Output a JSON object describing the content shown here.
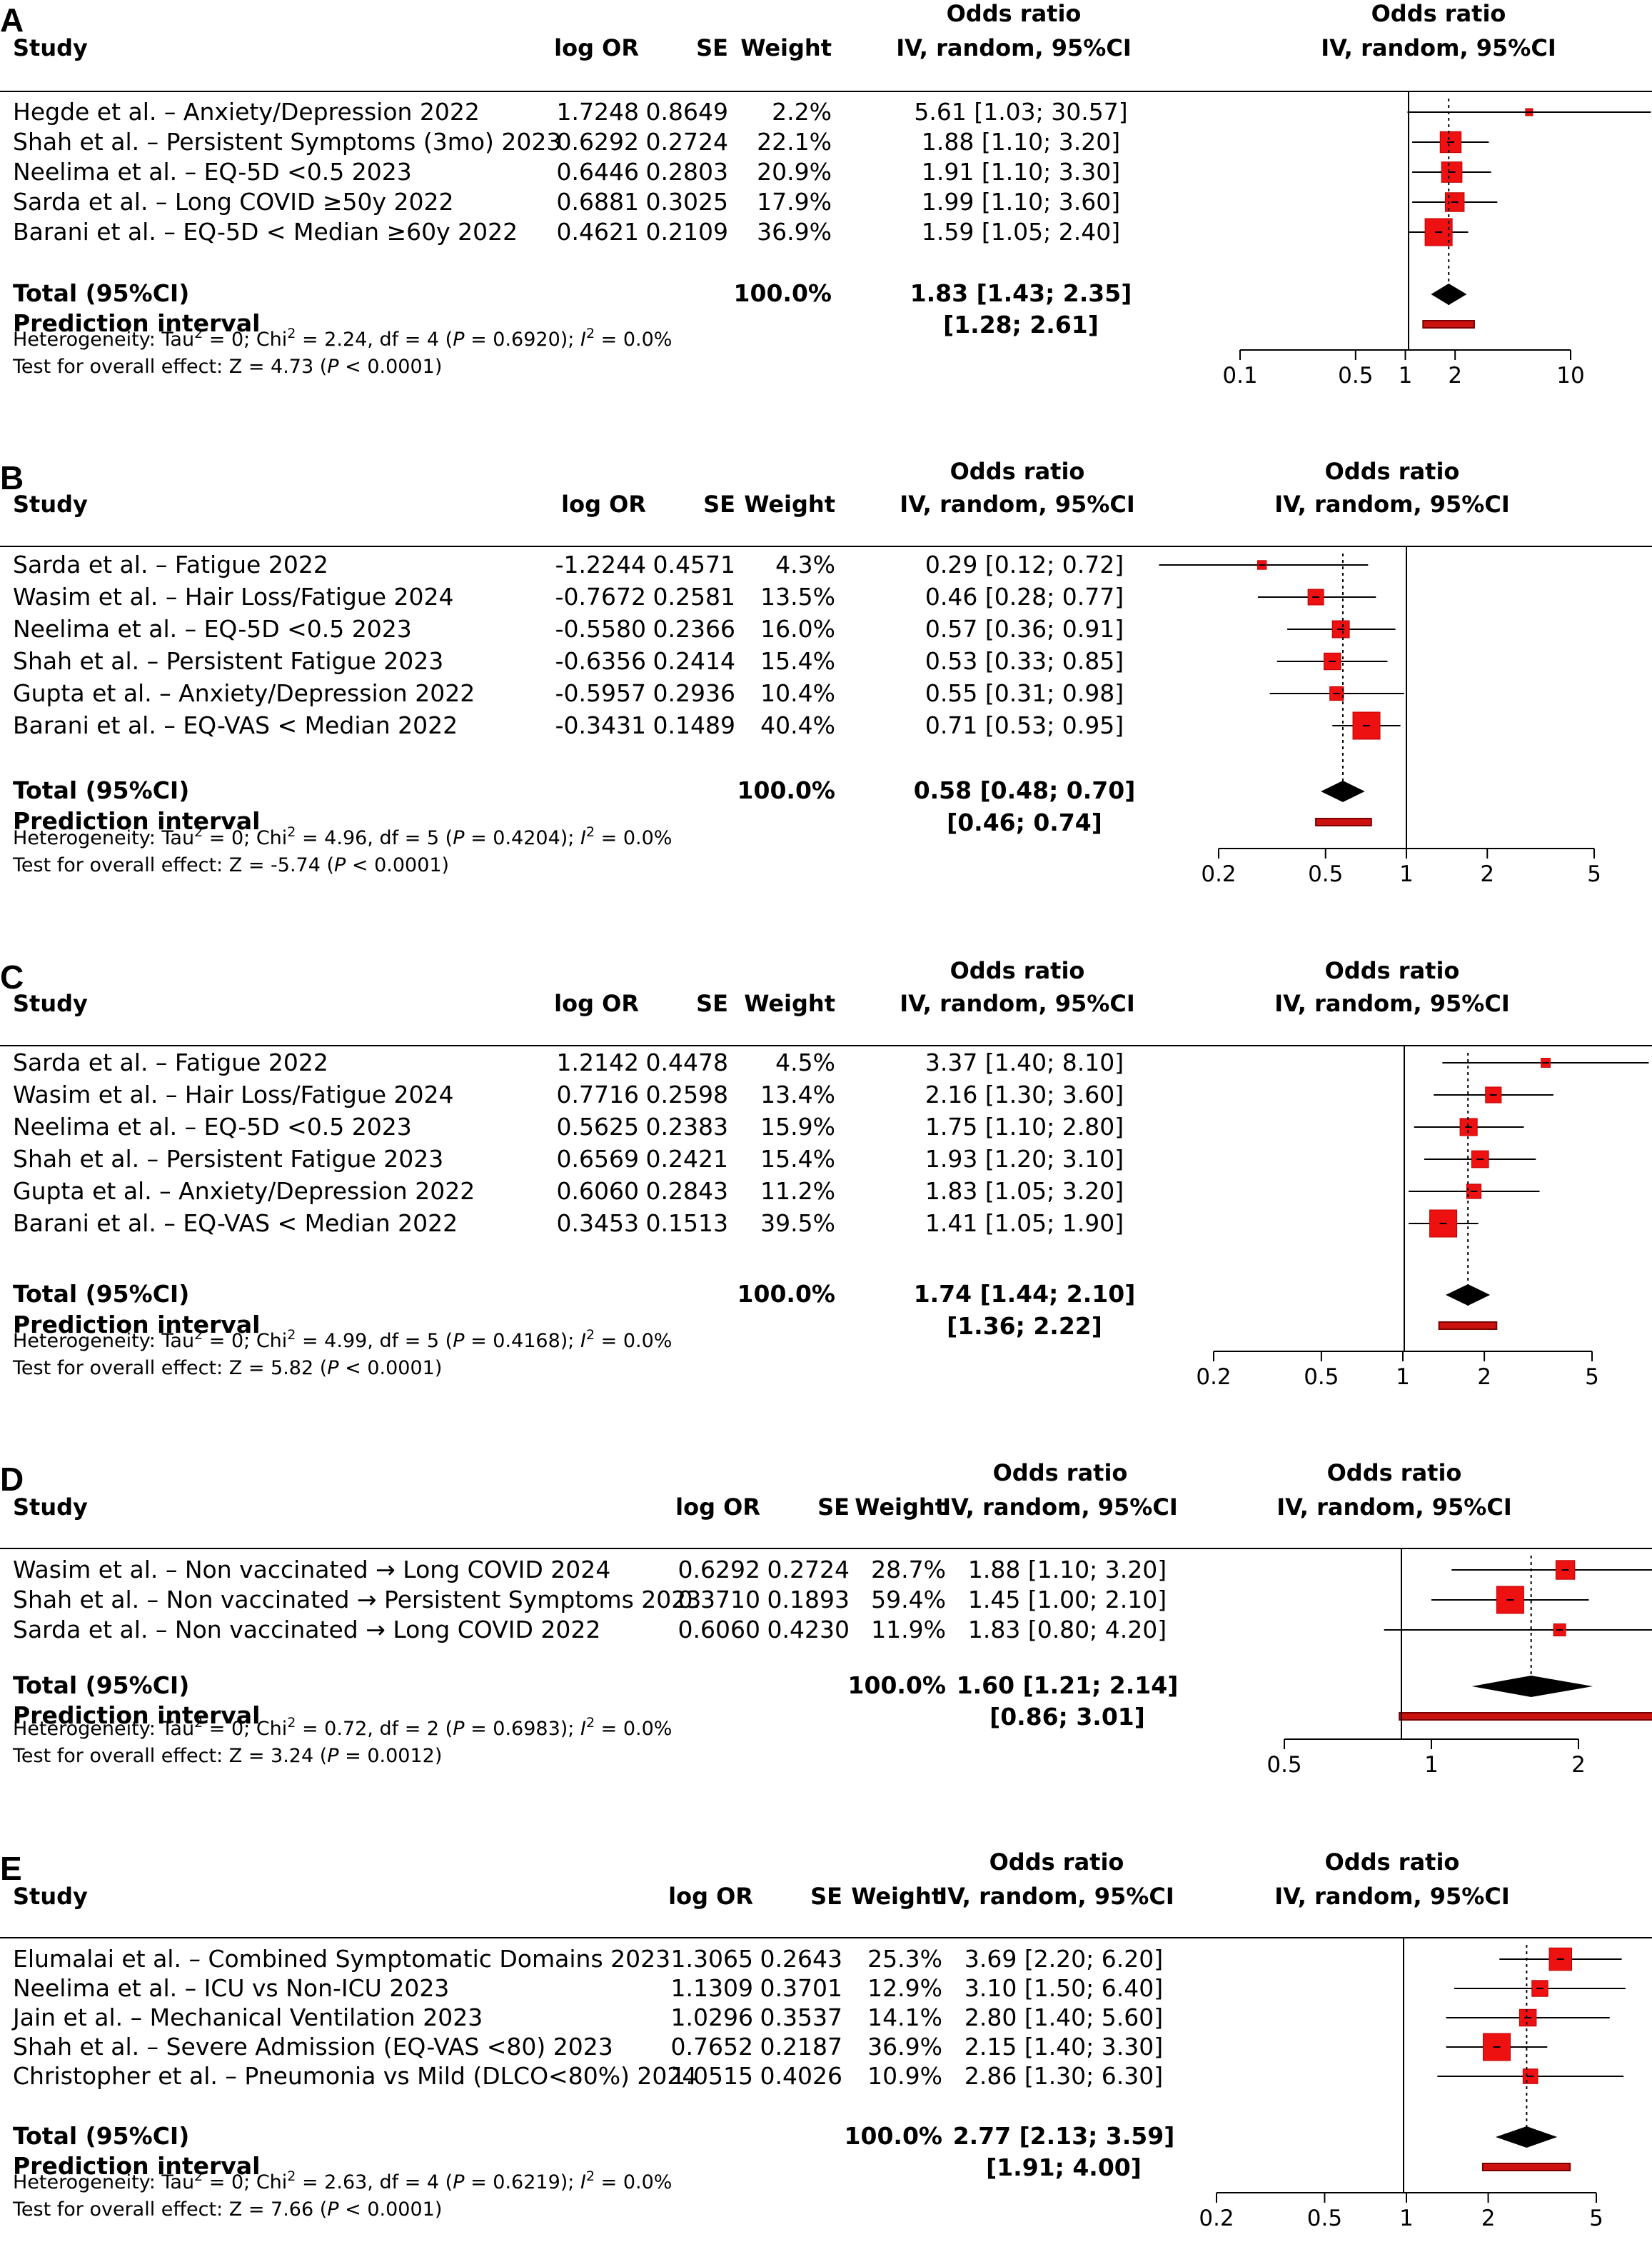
{
  "colors": {
    "box": "#ee1111",
    "box_edge": "#c00000",
    "pi_fill": "#cc1111",
    "pi_edge": "#7a0000",
    "diamond": "#000000"
  },
  "chart_data": [
    {
      "type": "forest",
      "panel": "A",
      "headers": {
        "study": "Study",
        "logor": "log OR",
        "se": "SE",
        "weight": "Weight",
        "or_top": "Odds ratio",
        "or_bottom": "IV, random, 95%CI",
        "plot_top": "Odds ratio",
        "plot_bottom": "IV, random, 95%CI"
      },
      "studies": [
        {
          "label": "Hegde et al. – Anxiety/Depression 2022",
          "logor": "1.7248",
          "se": "0.8649",
          "weight": "2.2%",
          "or_text": "5.61 [1.03; 30.57]",
          "or": 5.61,
          "lo": 1.03,
          "hi": 30.57,
          "w": 2.2
        },
        {
          "label": "Shah et al. – Persistent Symptoms (3mo) 2023",
          "logor": "0.6292",
          "se": "0.2724",
          "weight": "22.1%",
          "or_text": "1.88 [1.10; 3.20]",
          "or": 1.88,
          "lo": 1.1,
          "hi": 3.2,
          "w": 22.1
        },
        {
          "label": "Neelima et al. – EQ-5D <0.5 2023",
          "logor": "0.6446",
          "se": "0.2803",
          "weight": "20.9%",
          "or_text": "1.91 [1.10; 3.30]",
          "or": 1.91,
          "lo": 1.1,
          "hi": 3.3,
          "w": 20.9
        },
        {
          "label": "Sarda et al. – Long COVID ≥50y 2022",
          "logor": "0.6881",
          "se": "0.3025",
          "weight": "17.9%",
          "or_text": "1.99 [1.10; 3.60]",
          "or": 1.99,
          "lo": 1.1,
          "hi": 3.6,
          "w": 17.9
        },
        {
          "label": "Barani et al. – EQ-5D < Median ≥60y 2022",
          "logor": "0.4621",
          "se": "0.2109",
          "weight": "36.9%",
          "or_text": "1.59 [1.05; 2.40]",
          "or": 1.59,
          "lo": 1.05,
          "hi": 2.4,
          "w": 36.9
        }
      ],
      "total": {
        "label": "Total (95%CI)",
        "weight": "100.0%",
        "or_text": "1.83 [1.43; 2.35]",
        "or": 1.83,
        "lo": 1.43,
        "hi": 2.35
      },
      "prediction": {
        "label": "Prediction interval",
        "ci_text": "[1.28; 2.61]",
        "lo": 1.28,
        "hi": 2.61
      },
      "heterogeneity": "Heterogeneity: Tau² = 0; Chi² = 2.24, df = 4 (P = 0.6920); I² = 0.0%",
      "overall": "Test for overall effect: Z = 4.73 (P < 0.0001)",
      "axis": {
        "scale": "log",
        "min": 0.1,
        "max": 30.57,
        "ticks": [
          0.1,
          0.5,
          1,
          2,
          10
        ],
        "tick_labels": [
          "0.1",
          "0.5",
          "1",
          "2",
          "10"
        ]
      }
    },
    {
      "type": "forest",
      "panel": "B",
      "headers": {
        "study": "Study",
        "logor": "log OR",
        "se": "SE",
        "weight": "Weight",
        "or_top": "Odds ratio",
        "or_bottom": "IV, random, 95%CI",
        "plot_top": "Odds ratio",
        "plot_bottom": "IV, random, 95%CI"
      },
      "studies": [
        {
          "label": "Sarda et al. – Fatigue 2022",
          "logor": "-1.2244",
          "se": "0.4571",
          "weight": "4.3%",
          "or_text": "0.29 [0.12; 0.72]",
          "or": 0.29,
          "lo": 0.12,
          "hi": 0.72,
          "w": 4.3
        },
        {
          "label": "Wasim et al. – Hair Loss/Fatigue 2024",
          "logor": "-0.7672",
          "se": "0.2581",
          "weight": "13.5%",
          "or_text": "0.46 [0.28; 0.77]",
          "or": 0.46,
          "lo": 0.28,
          "hi": 0.77,
          "w": 13.5
        },
        {
          "label": "Neelima et al. – EQ-5D <0.5 2023",
          "logor": "-0.5580",
          "se": "0.2366",
          "weight": "16.0%",
          "or_text": "0.57 [0.36; 0.91]",
          "or": 0.57,
          "lo": 0.36,
          "hi": 0.91,
          "w": 16.0
        },
        {
          "label": "Shah et al. – Persistent Fatigue 2023",
          "logor": "-0.6356",
          "se": "0.2414",
          "weight": "15.4%",
          "or_text": "0.53 [0.33; 0.85]",
          "or": 0.53,
          "lo": 0.33,
          "hi": 0.85,
          "w": 15.4
        },
        {
          "label": "Gupta et al. – Anxiety/Depression 2022",
          "logor": "-0.5957",
          "se": "0.2936",
          "weight": "10.4%",
          "or_text": "0.55 [0.31; 0.98]",
          "or": 0.55,
          "lo": 0.31,
          "hi": 0.98,
          "w": 10.4
        },
        {
          "label": "Barani et al. – EQ-VAS < Median 2022",
          "logor": "-0.3431",
          "se": "0.1489",
          "weight": "40.4%",
          "or_text": "0.71 [0.53; 0.95]",
          "or": 0.71,
          "lo": 0.53,
          "hi": 0.95,
          "w": 40.4
        }
      ],
      "total": {
        "label": "Total (95%CI)",
        "weight": "100.0%",
        "or_text": "0.58 [0.48; 0.70]",
        "or": 0.58,
        "lo": 0.48,
        "hi": 0.7
      },
      "prediction": {
        "label": "Prediction interval",
        "ci_text": "[0.46; 0.74]",
        "lo": 0.46,
        "hi": 0.74
      },
      "heterogeneity": "Heterogeneity: Tau² = 0; Chi² = 4.96, df = 5 (P = 0.4204); I² = 0.0%",
      "overall": "Test for overall effect: Z = -5.74 (P < 0.0001)",
      "axis": {
        "scale": "log",
        "min": 0.12,
        "max": 5,
        "ticks": [
          0.2,
          0.5,
          1,
          2,
          5
        ],
        "tick_labels": [
          "0.2",
          "0.5",
          "1",
          "2",
          "5"
        ]
      }
    },
    {
      "type": "forest",
      "panel": "C",
      "headers": {
        "study": "Study",
        "logor": "log OR",
        "se": "SE",
        "weight": "Weight",
        "or_top": "Odds ratio",
        "or_bottom": "IV, random, 95%CI",
        "plot_top": "Odds ratio",
        "plot_bottom": "IV, random, 95%CI"
      },
      "studies": [
        {
          "label": "Sarda et al. – Fatigue 2022",
          "logor": "1.2142",
          "se": "0.4478",
          "weight": "4.5%",
          "or_text": "3.37 [1.40; 8.10]",
          "or": 3.37,
          "lo": 1.4,
          "hi": 8.1,
          "w": 4.5
        },
        {
          "label": "Wasim et al. – Hair Loss/Fatigue 2024",
          "logor": "0.7716",
          "se": "0.2598",
          "weight": "13.4%",
          "or_text": "2.16 [1.30; 3.60]",
          "or": 2.16,
          "lo": 1.3,
          "hi": 3.6,
          "w": 13.4
        },
        {
          "label": "Neelima et al. – EQ-5D <0.5 2023",
          "logor": "0.5625",
          "se": "0.2383",
          "weight": "15.9%",
          "or_text": "1.75 [1.10; 2.80]",
          "or": 1.75,
          "lo": 1.1,
          "hi": 2.8,
          "w": 15.9
        },
        {
          "label": "Shah et al. – Persistent Fatigue 2023",
          "logor": "0.6569",
          "se": "0.2421",
          "weight": "15.4%",
          "or_text": "1.93 [1.20; 3.10]",
          "or": 1.93,
          "lo": 1.2,
          "hi": 3.1,
          "w": 15.4
        },
        {
          "label": "Gupta et al. – Anxiety/Depression 2022",
          "logor": "0.6060",
          "se": "0.2843",
          "weight": "11.2%",
          "or_text": "1.83 [1.05; 3.20]",
          "or": 1.83,
          "lo": 1.05,
          "hi": 3.2,
          "w": 11.2
        },
        {
          "label": "Barani et al. – EQ-VAS < Median 2022",
          "logor": "0.3453",
          "se": "0.1513",
          "weight": "39.5%",
          "or_text": "1.41 [1.05; 1.90]",
          "or": 1.41,
          "lo": 1.05,
          "hi": 1.9,
          "w": 39.5
        }
      ],
      "total": {
        "label": "Total (95%CI)",
        "weight": "100.0%",
        "or_text": "1.74 [1.44; 2.10]",
        "or": 1.74,
        "lo": 1.44,
        "hi": 2.1
      },
      "prediction": {
        "label": "Prediction interval",
        "ci_text": "[1.36; 2.22]",
        "lo": 1.36,
        "hi": 2.22
      },
      "heterogeneity": "Heterogeneity: Tau² = 0; Chi² = 4.99, df = 5 (P = 0.4168); I² = 0.0%",
      "overall": "Test for overall effect: Z = 5.82 (P < 0.0001)",
      "axis": {
        "scale": "log",
        "min": 0.2,
        "max": 8.1,
        "ticks": [
          0.2,
          0.5,
          1,
          2,
          5
        ],
        "tick_labels": [
          "0.2",
          "0.5",
          "1",
          "2",
          "5"
        ]
      }
    },
    {
      "type": "forest",
      "panel": "D",
      "headers": {
        "study": "Study",
        "logor": "log OR",
        "se": "SE",
        "weight": "Weight",
        "or_top": "Odds ratio",
        "or_bottom": "IV, random, 95%CI",
        "plot_top": "Odds ratio",
        "plot_bottom": "IV, random, 95%CI"
      },
      "studies": [
        {
          "label": "Wasim et al. – Non vaccinated → Long COVID 2024",
          "logor": "0.6292",
          "se": "0.2724",
          "weight": "28.7%",
          "or_text": "1.88 [1.10; 3.20]",
          "or": 1.88,
          "lo": 1.1,
          "hi": 3.2,
          "w": 28.7
        },
        {
          "label": "Shah et al. – Non vaccinated → Persistent Symptoms 2023",
          "logor": "0.3710",
          "se": "0.1893",
          "weight": "59.4%",
          "or_text": "1.45 [1.00; 2.10]",
          "or": 1.45,
          "lo": 1.0,
          "hi": 2.1,
          "w": 59.4
        },
        {
          "label": "Sarda et al. – Non vaccinated → Long COVID 2022",
          "logor": "0.6060",
          "se": "0.4230",
          "weight": "11.9%",
          "or_text": "1.83 [0.80; 4.20]",
          "or": 1.83,
          "lo": 0.8,
          "hi": 4.2,
          "w": 11.9
        }
      ],
      "total": {
        "label": "Total (95%CI)",
        "weight": "100.0%",
        "or_text": "1.60 [1.21; 2.14]",
        "or": 1.6,
        "lo": 1.21,
        "hi": 2.14
      },
      "prediction": {
        "label": "Prediction interval",
        "ci_text": "[0.86; 3.01]",
        "lo": 0.86,
        "hi": 3.01
      },
      "heterogeneity": "Heterogeneity: Tau² = 0; Chi² = 0.72, df = 2 (P = 0.6983); I² = 0.0%",
      "overall": "Test for overall effect: Z = 3.24 (P = 0.0012)",
      "axis": {
        "scale": "log",
        "min": 0.5,
        "max": 4.2,
        "ticks": [
          0.5,
          1,
          2
        ],
        "tick_labels": [
          "0.5",
          "1",
          "2"
        ]
      }
    },
    {
      "type": "forest",
      "panel": "E",
      "headers": {
        "study": "Study",
        "logor": "log OR",
        "se": "SE",
        "weight": "Weight",
        "or_top": "Odds ratio",
        "or_bottom": "IV, random, 95%CI",
        "plot_top": "Odds ratio",
        "plot_bottom": "IV, random, 95%CI"
      },
      "studies": [
        {
          "label": "Elumalai et al. – Combined Symptomatic Domains 2023",
          "logor": "1.3065",
          "se": "0.2643",
          "weight": "25.3%",
          "or_text": "3.69 [2.20; 6.20]",
          "or": 3.69,
          "lo": 2.2,
          "hi": 6.2,
          "w": 25.3
        },
        {
          "label": "Neelima et al. – ICU vs Non-ICU 2023",
          "logor": "1.1309",
          "se": "0.3701",
          "weight": "12.9%",
          "or_text": "3.10 [1.50; 6.40]",
          "or": 3.1,
          "lo": 1.5,
          "hi": 6.4,
          "w": 12.9
        },
        {
          "label": "Jain et al. – Mechanical Ventilation 2023",
          "logor": "1.0296",
          "se": "0.3537",
          "weight": "14.1%",
          "or_text": "2.80 [1.40; 5.60]",
          "or": 2.8,
          "lo": 1.4,
          "hi": 5.6,
          "w": 14.1
        },
        {
          "label": "Shah et al. – Severe Admission (EQ-VAS <80) 2023",
          "logor": "0.7652",
          "se": "0.2187",
          "weight": "36.9%",
          "or_text": "2.15 [1.40; 3.30]",
          "or": 2.15,
          "lo": 1.4,
          "hi": 3.3,
          "w": 36.9
        },
        {
          "label": "Christopher et al. – Pneumonia vs Mild (DLCO<80%) 2024",
          "logor": "1.0515",
          "se": "0.4026",
          "weight": "10.9%",
          "or_text": "2.86 [1.30; 6.30]",
          "or": 2.86,
          "lo": 1.3,
          "hi": 6.3,
          "w": 10.9
        }
      ],
      "total": {
        "label": "Total (95%CI)",
        "weight": "100.0%",
        "or_text": "2.77 [2.13; 3.59]",
        "or": 2.77,
        "lo": 2.13,
        "hi": 3.59
      },
      "prediction": {
        "label": "Prediction interval",
        "ci_text": "[1.91; 4.00]",
        "lo": 1.91,
        "hi": 4.0
      },
      "heterogeneity": "Heterogeneity: Tau² = 0; Chi² = 2.63, df = 4 (P = 0.6219); I² = 0.0%",
      "overall": "Test for overall effect: Z = 7.66 (P < 0.0001)",
      "axis": {
        "scale": "log",
        "min": 0.2,
        "max": 6.4,
        "ticks": [
          0.2,
          0.5,
          1,
          2,
          5
        ],
        "tick_labels": [
          "0.2",
          "0.5",
          "1",
          "2",
          "5"
        ]
      }
    }
  ]
}
